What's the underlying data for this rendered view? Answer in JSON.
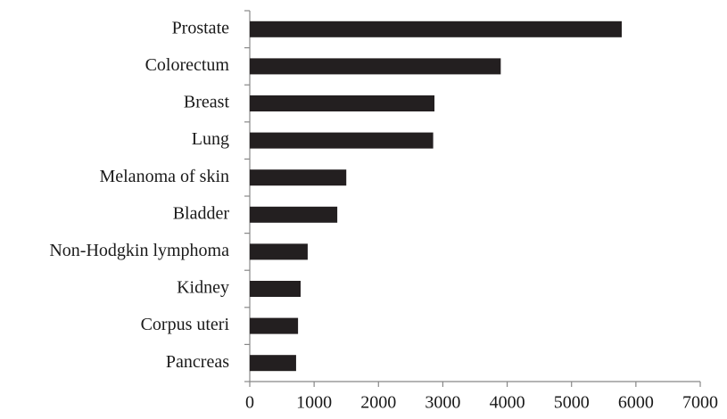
{
  "chart_data": {
    "type": "barh",
    "categories": [
      "Prostate",
      "Colorectum",
      "Breast",
      "Lung",
      "Melanoma of skin",
      "Bladder",
      "Non-Hodgkin lymphoma",
      "Kidney",
      "Corpus uteri",
      "Pancreas"
    ],
    "values": [
      5780,
      3900,
      2870,
      2850,
      1500,
      1360,
      900,
      790,
      750,
      720
    ],
    "color": "#231f20",
    "xlim": [
      0,
      7000
    ],
    "xticks": [
      0,
      1000,
      2000,
      3000,
      4000,
      5000,
      6000,
      7000
    ]
  }
}
